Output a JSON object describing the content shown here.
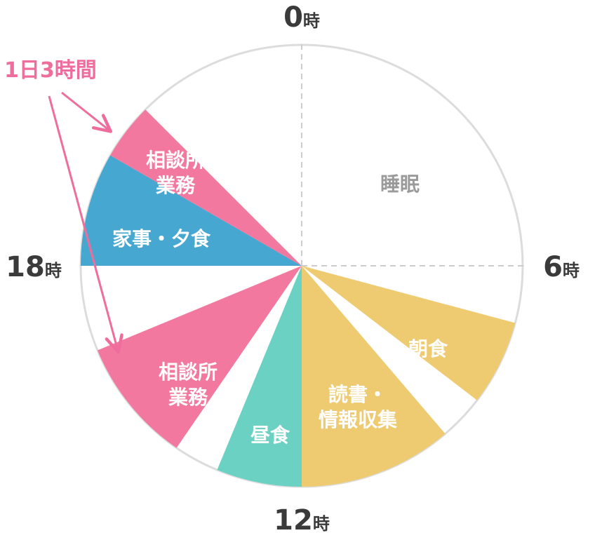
{
  "chart_data": {
    "type": "pie",
    "title": "",
    "unit_hours": 24,
    "hour_markers": [
      {
        "hour": 0,
        "number": "0",
        "unit": "時"
      },
      {
        "hour": 6,
        "number": "6",
        "unit": "時"
      },
      {
        "hour": 12,
        "number": "12",
        "unit": "時"
      },
      {
        "hour": 18,
        "number": "18",
        "unit": "時"
      }
    ],
    "segments": [
      {
        "start": 0.0,
        "end": 7.0,
        "lines": [
          "睡眠"
        ],
        "fill": "#ffffff",
        "text_color": "#9a9a9a"
      },
      {
        "start": 7.0,
        "end": 8.5,
        "lines": [
          "朝食"
        ],
        "fill": "#eecb70",
        "text_color": "#ffffff"
      },
      {
        "start": 8.5,
        "end": 9.3,
        "lines": [],
        "fill": "#ffffff",
        "text_color": "#ffffff"
      },
      {
        "start": 9.3,
        "end": 12.0,
        "lines": [
          "読書・",
          "情報収集"
        ],
        "fill": "#eecb70",
        "text_color": "#ffffff"
      },
      {
        "start": 12.0,
        "end": 13.5,
        "lines": [
          "昼食"
        ],
        "fill": "#6ad1c3",
        "text_color": "#ffffff"
      },
      {
        "start": 13.5,
        "end": 14.3,
        "lines": [],
        "fill": "#ffffff",
        "text_color": "#ffffff"
      },
      {
        "start": 14.3,
        "end": 16.5,
        "lines": [
          "相談所",
          "業務"
        ],
        "fill": "#f2789f",
        "text_color": "#ffffff"
      },
      {
        "start": 16.5,
        "end": 18.0,
        "lines": [],
        "fill": "#ffffff",
        "text_color": "#ffffff"
      },
      {
        "start": 18.0,
        "end": 20.0,
        "lines": [
          "家事・夕食"
        ],
        "fill": "#46a8d0",
        "text_color": "#ffffff"
      },
      {
        "start": 20.0,
        "end": 21.0,
        "lines": [
          "相談所",
          "業務"
        ],
        "fill": "#f2789f",
        "text_color": "#ffffff"
      },
      {
        "start": 21.0,
        "end": 24.0,
        "lines": [],
        "fill": "#ffffff",
        "text_color": "#ffffff"
      }
    ],
    "annotation": {
      "text": "1日3時間",
      "color": "#ef6d9c",
      "points_to_segments": [
        9,
        6
      ]
    },
    "colors": {
      "outline": "#dcdcdc",
      "guide": "#cccccc"
    }
  }
}
